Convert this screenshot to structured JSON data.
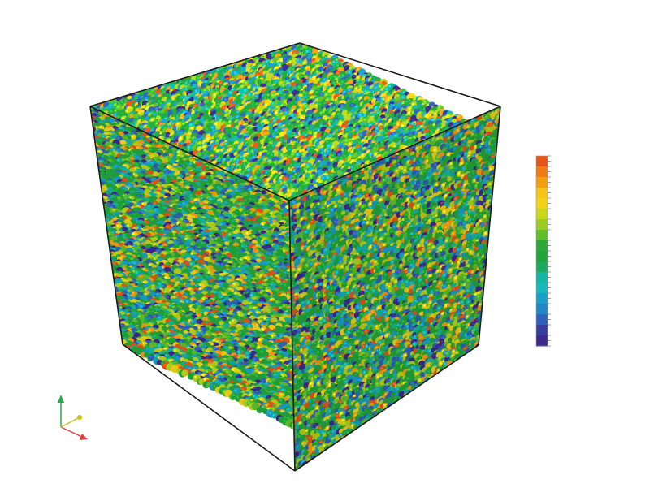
{
  "scene": {
    "background": "#ffffff",
    "edge_color": "#1a1a1a",
    "palette": [
      "#3b2a8c",
      "#2f62b8",
      "#1a9fc8",
      "#17b5a3",
      "#22a43b",
      "#5fbf2a",
      "#b7d21c",
      "#f1d21a",
      "#f59d12",
      "#e2561b"
    ],
    "palette_weights": [
      0.06,
      0.08,
      0.08,
      0.1,
      0.3,
      0.1,
      0.11,
      0.07,
      0.05,
      0.05
    ]
  },
  "colorbar": {
    "colors": [
      "#e2561b",
      "#f07a15",
      "#f59d12",
      "#f6c318",
      "#f1d21a",
      "#c8d81c",
      "#9ccc24",
      "#5fbf2a",
      "#2ea83a",
      "#22a43b",
      "#1fa861",
      "#17b5a3",
      "#19b8b8",
      "#1a9fc8",
      "#2386c4",
      "#2f62b8",
      "#363f9e",
      "#3b2a8c"
    ]
  },
  "axes_triad": {
    "x_color": "#e04040",
    "y_color": "#2aa84a",
    "z_color": "#c9c21a"
  }
}
